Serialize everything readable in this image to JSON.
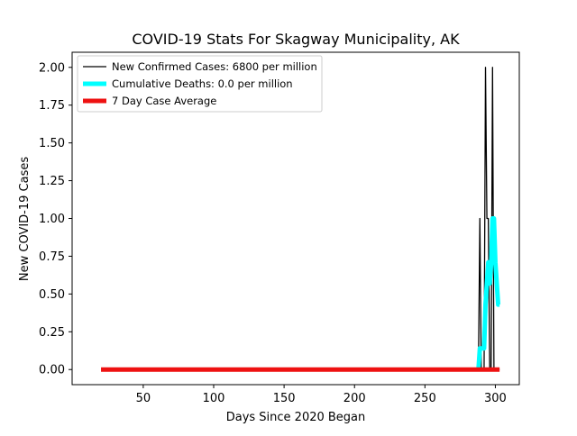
{
  "chart_data": {
    "type": "line",
    "title": "COVID-19 Stats For Skagway Municipality, AK",
    "xlabel": "Days Since 2020 Began",
    "ylabel": "New COVID-19 Cases",
    "xlim": [
      -0.5,
      317
    ],
    "ylim": [
      -0.1,
      2.1
    ],
    "xticks": [
      50,
      100,
      150,
      200,
      250,
      300
    ],
    "xtick_labels": [
      "50",
      "100",
      "150",
      "200",
      "250",
      "300"
    ],
    "yticks": [
      0.0,
      0.25,
      0.5,
      0.75,
      1.0,
      1.25,
      1.5,
      1.75,
      2.0
    ],
    "ytick_labels": [
      "0.00",
      "0.25",
      "0.50",
      "0.75",
      "1.00",
      "1.25",
      "1.50",
      "1.75",
      "2.00"
    ],
    "grid": false,
    "legend_position": "top-left",
    "series": [
      {
        "name": "New Confirmed Cases: 6800 per million",
        "color": "#000000",
        "x": [
          288,
          289,
          290,
          291,
          292,
          293,
          294,
          295,
          296,
          297,
          298,
          299,
          300,
          301,
          302,
          303
        ],
        "y": [
          0,
          1,
          0,
          0,
          0,
          2,
          1,
          1,
          0,
          0,
          2,
          0,
          0,
          0,
          0,
          0
        ]
      },
      {
        "name": "Cumulative Deaths: 0.0 per million",
        "color": "#00ffff",
        "x": [
          288,
          289,
          290,
          291,
          292,
          293,
          294,
          295,
          296,
          297,
          298,
          299,
          300,
          301,
          302,
          303
        ],
        "y": [
          0.0,
          0.14,
          0.14,
          0.14,
          0.14,
          0.43,
          0.57,
          0.71,
          0.57,
          0.71,
          1.0,
          1.0,
          0.71,
          0.57,
          0.43,
          0.43
        ]
      },
      {
        "name": "7 Day Case Average",
        "color": "#ee1111",
        "x": [
          20,
          303
        ],
        "y": [
          0,
          0
        ]
      }
    ]
  }
}
